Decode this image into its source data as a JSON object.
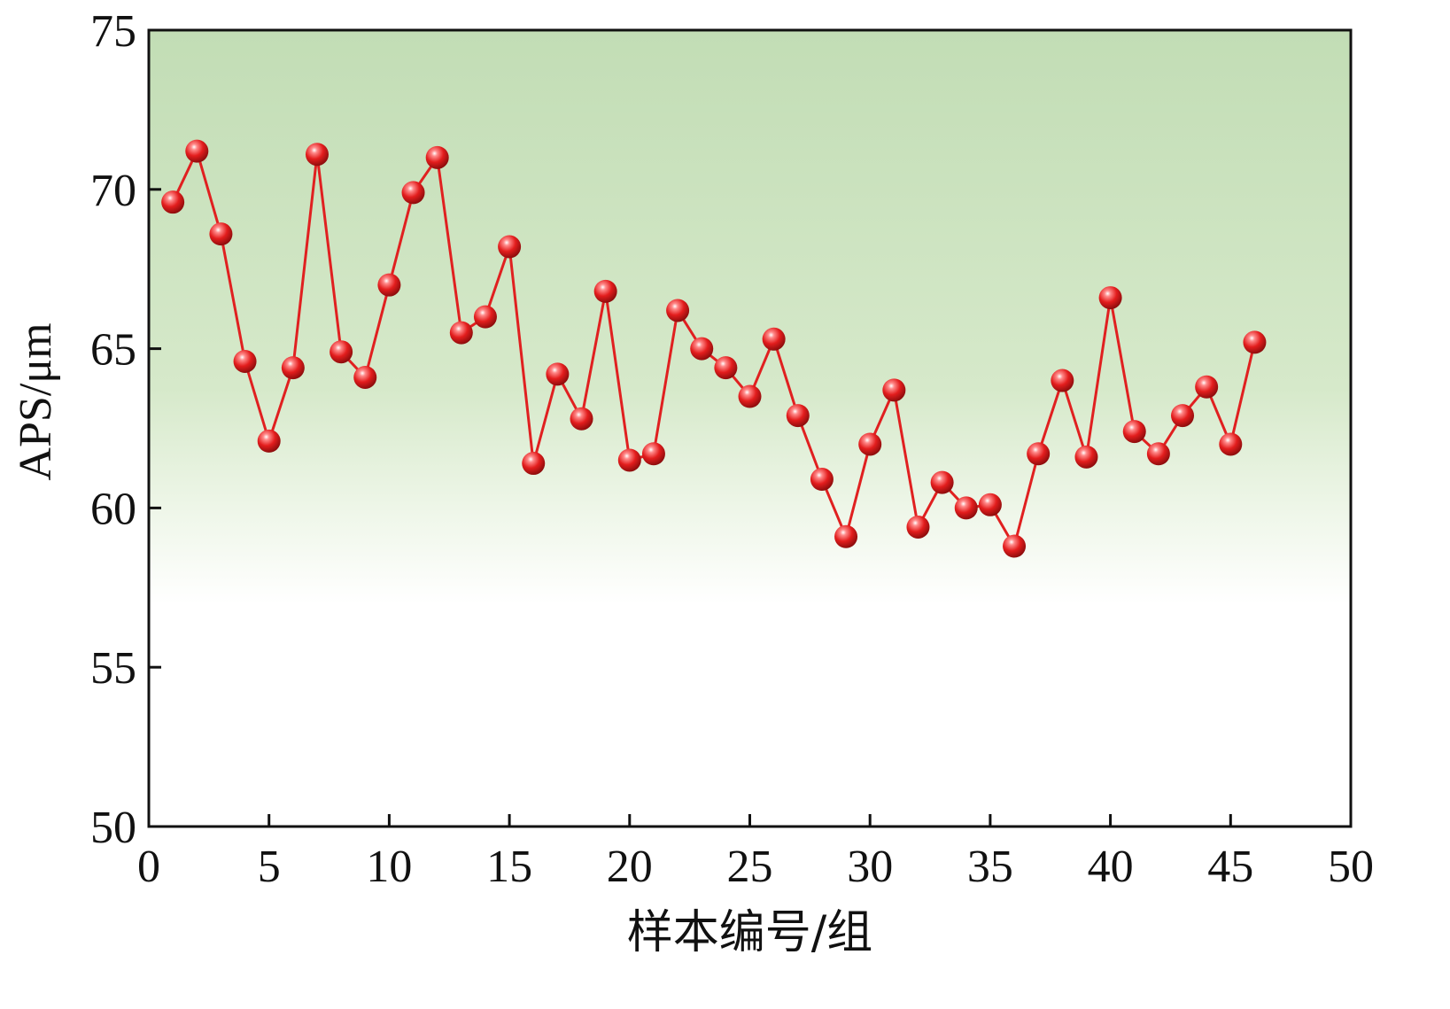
{
  "chart_data": {
    "type": "line",
    "title": "",
    "xlabel": "样本编号/组",
    "ylabel": "APS/μm",
    "xlim": [
      0,
      50
    ],
    "ylim": [
      50,
      75
    ],
    "xticks": [
      "0",
      "5",
      "10",
      "15",
      "20",
      "25",
      "30",
      "35",
      "40",
      "45",
      "50"
    ],
    "yticks": [
      "50",
      "55",
      "60",
      "65",
      "70",
      "75"
    ],
    "grid": false,
    "legend": "none",
    "series": [
      {
        "color": "#e02020",
        "marker": "sphere",
        "x": [
          1,
          2,
          3,
          4,
          5,
          6,
          7,
          8,
          9,
          10,
          11,
          12,
          13,
          14,
          15,
          16,
          17,
          18,
          19,
          20,
          21,
          22,
          23,
          24,
          25,
          26,
          27,
          28,
          29,
          30,
          31,
          32,
          33,
          34,
          35,
          36,
          37,
          38,
          39,
          40,
          41,
          42,
          43,
          44,
          45,
          46
        ],
        "y": [
          69.6,
          71.2,
          68.6,
          64.6,
          62.1,
          64.4,
          71.1,
          64.9,
          64.1,
          67.0,
          69.9,
          71.0,
          65.5,
          66.0,
          68.2,
          61.4,
          64.2,
          62.8,
          66.8,
          61.5,
          61.7,
          66.2,
          65.0,
          64.4,
          63.5,
          65.3,
          62.9,
          60.9,
          59.1,
          62.0,
          63.7,
          59.4,
          60.8,
          60.0,
          60.1,
          58.8,
          61.7,
          64.0,
          61.6,
          66.6,
          62.4,
          61.7,
          62.9,
          63.8,
          62.0,
          65.2
        ]
      }
    ],
    "background_gradient": {
      "top_color": "#c2ddb5",
      "bottom_color": "#ffffff",
      "fade_to_y": 57
    }
  }
}
